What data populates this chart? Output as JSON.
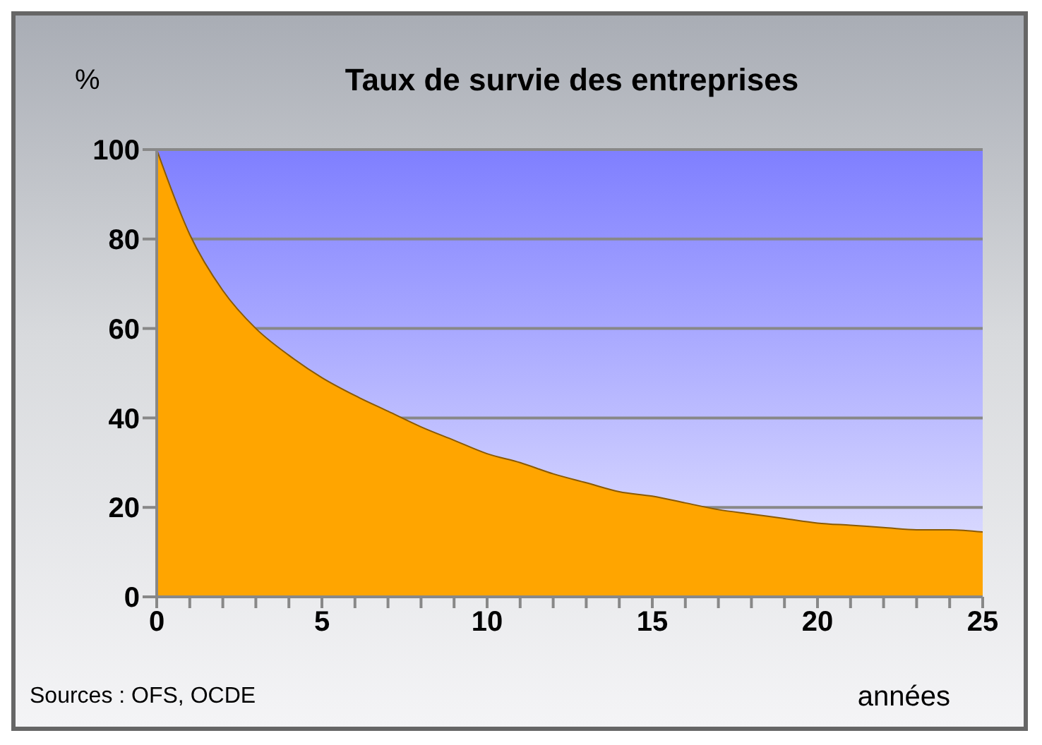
{
  "chart_data": {
    "type": "area",
    "title": "Taux de survie des entreprises",
    "ylabel": "%",
    "xlabel": "années",
    "annotations": [
      "Sources : OFS, OCDE"
    ],
    "x": [
      0,
      1,
      2,
      3,
      4,
      5,
      6,
      7,
      8,
      9,
      10,
      11,
      12,
      13,
      14,
      15,
      16,
      17,
      18,
      19,
      20,
      21,
      22,
      23,
      24,
      25
    ],
    "series": [
      {
        "color": "#ffa500",
        "values": [
          100,
          81,
          68.5,
          60,
          54,
          49,
          45,
          41.5,
          38,
          35,
          32,
          30,
          27.5,
          25.5,
          23.5,
          22.5,
          21,
          19.5,
          18.5,
          17.5,
          16.5,
          16,
          15.5,
          15,
          15,
          14.5
        ]
      }
    ],
    "xlim": [
      0,
      25
    ],
    "xticks": [
      0,
      {
        "value": 1,
        "label": null
      },
      {
        "value": 2,
        "label": null
      },
      {
        "value": 3,
        "label": null
      },
      {
        "value": 4,
        "label": null
      },
      5,
      {
        "value": 6,
        "label": null
      },
      {
        "value": 7,
        "label": null
      },
      {
        "value": 8,
        "label": null
      },
      {
        "value": 9,
        "label": null
      },
      10,
      {
        "value": 11,
        "label": null
      },
      {
        "value": 12,
        "label": null
      },
      {
        "value": 13,
        "label": null
      },
      {
        "value": 14,
        "label": null
      },
      15,
      {
        "value": 16,
        "label": null
      },
      {
        "value": 17,
        "label": null
      },
      {
        "value": 18,
        "label": null
      },
      {
        "value": 19,
        "label": null
      },
      20,
      {
        "value": 21,
        "label": null
      },
      {
        "value": 22,
        "label": null
      },
      {
        "value": 23,
        "label": null
      },
      {
        "value": 24,
        "label": null
      },
      25
    ],
    "ylim": [
      0,
      100
    ],
    "yticks": [
      0,
      20,
      40,
      60,
      80,
      100
    ],
    "grid": "y"
  }
}
